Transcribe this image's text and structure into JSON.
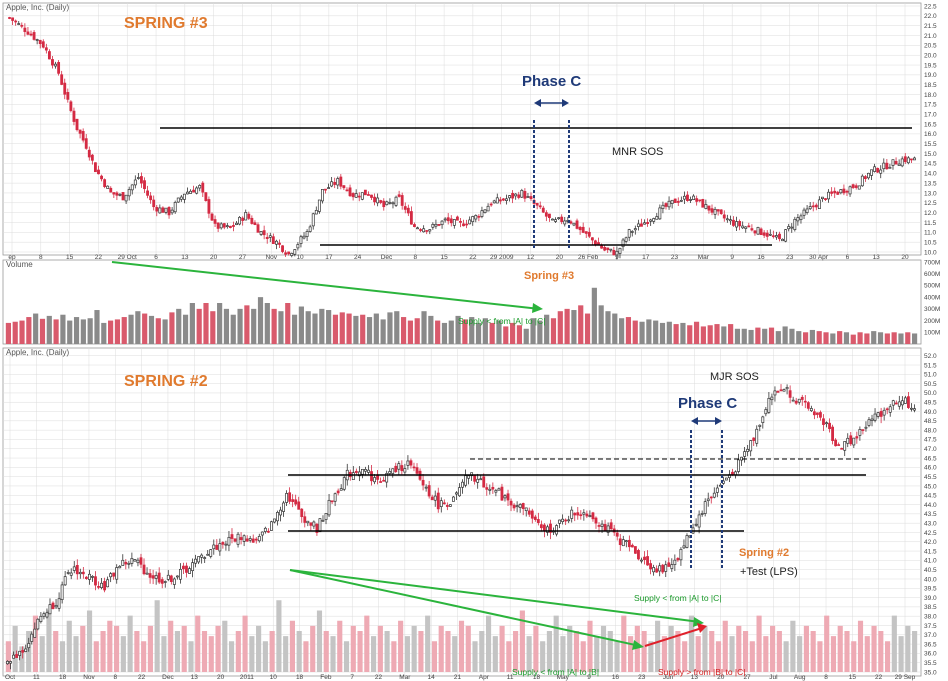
{
  "colors": {
    "up": "#333333",
    "down": "#d42a43",
    "vol_up": "#8a8a8a",
    "vol_down": "#d95a6c",
    "vol2_up": "#c4c4c4",
    "vol2_down": "#eeaab4",
    "level": "#000000",
    "phase": "#1f3a78",
    "trend_green": "#2bb43c",
    "trend_red": "#e0202a",
    "label_orange": "#e07a2e",
    "grid": "#dcdcdc"
  },
  "panel1": {
    "title": "Apple, Inc. (Daily)",
    "volume_title": "Volume",
    "annotations": {
      "spring": "SPRING #3",
      "phase": "Phase C",
      "sos": "MNR SOS",
      "spring_vol": "Spring #3",
      "supply": "Supply < from |A| to |C|"
    }
  },
  "panel2": {
    "title": "Apple, Inc. (Daily)",
    "annotations": {
      "spring": "SPRING #2",
      "phase": "Phase C",
      "sos": "MJR SOS",
      "spring_low": "Spring #2",
      "test": "+Test (LPS)",
      "supply_ac": "Supply < from |A| to |C|",
      "supply_ab": "Supply < from |A| to |B|",
      "supply_bc": "Supply > from |B| to |C|"
    }
  },
  "chart_data": [
    {
      "type": "candlestick",
      "title": "Apple, Inc. (Daily)",
      "x_ticks": [
        "ep",
        "8",
        "15",
        "22",
        "29 Oct",
        "6",
        "13",
        "20",
        "27",
        "Nov",
        "10",
        "17",
        "24",
        "Dec",
        "8",
        "15",
        "22",
        "29 2009",
        "12",
        "20",
        "26 Feb",
        "9",
        "17",
        "23",
        "Mar",
        "9",
        "16",
        "23",
        "30 Apr",
        "6",
        "13",
        "20"
      ],
      "y_ticks": [
        "22.5",
        "22.0",
        "21.5",
        "21.0",
        "20.5",
        "20.0",
        "19.5",
        "19.0",
        "18.5",
        "18.0",
        "17.5",
        "17.0",
        "16.5",
        "16.0",
        "15.5",
        "15.0",
        "14.5",
        "14.0",
        "13.5",
        "13.0",
        "12.5",
        "12.0",
        "11.5",
        "11.0",
        "10.5",
        "10.0"
      ],
      "ylim": [
        10.0,
        22.5
      ],
      "close_path": [
        [
          0,
          21.9
        ],
        [
          6,
          21.2
        ],
        [
          11,
          20.5
        ],
        [
          16,
          19.1
        ],
        [
          19,
          17.6
        ],
        [
          22,
          16.3
        ],
        [
          25,
          15.4
        ],
        [
          28,
          14.2
        ],
        [
          33,
          13.0
        ],
        [
          37,
          12.8
        ],
        [
          42,
          13.8
        ],
        [
          47,
          12.3
        ],
        [
          52,
          12.0
        ],
        [
          57,
          13.0
        ],
        [
          62,
          13.3
        ],
        [
          67,
          11.3
        ],
        [
          72,
          11.2
        ],
        [
          77,
          11.9
        ],
        [
          82,
          11.0
        ],
        [
          87,
          10.5
        ],
        [
          91,
          9.9
        ],
        [
          97,
          11.0
        ],
        [
          102,
          13.1
        ],
        [
          107,
          13.6
        ],
        [
          112,
          12.9
        ],
        [
          117,
          13.0
        ],
        [
          122,
          12.3
        ],
        [
          127,
          12.7
        ],
        [
          132,
          11.3
        ],
        [
          137,
          11.2
        ],
        [
          142,
          11.6
        ],
        [
          147,
          11.4
        ],
        [
          152,
          11.8
        ],
        [
          157,
          12.5
        ],
        [
          162,
          12.7
        ],
        [
          167,
          13.0
        ],
        [
          172,
          12.3
        ],
        [
          177,
          11.5
        ],
        [
          182,
          11.7
        ],
        [
          187,
          11.0
        ],
        [
          190,
          10.6
        ],
        [
          194,
          10.1
        ],
        [
          198,
          9.95
        ],
        [
          202,
          11.0
        ],
        [
          207,
          11.5
        ],
        [
          212,
          12.1
        ],
        [
          217,
          12.6
        ],
        [
          222,
          12.8
        ],
        [
          227,
          12.3
        ],
        [
          232,
          11.8
        ],
        [
          237,
          11.4
        ],
        [
          242,
          11.2
        ],
        [
          247,
          10.9
        ],
        [
          251,
          10.6
        ],
        [
          256,
          11.6
        ],
        [
          261,
          12.2
        ],
        [
          266,
          12.8
        ],
        [
          271,
          13.1
        ],
        [
          276,
          13.4
        ],
        [
          281,
          14.1
        ],
        [
          286,
          14.4
        ],
        [
          291,
          14.7
        ],
        [
          295,
          14.7
        ]
      ],
      "levels": {
        "resistance": 15.0,
        "support": 10.3
      },
      "phase_c_window": [
        "Jan 2009 week 2",
        "Jan 2009 week 4"
      ]
    },
    {
      "type": "bar",
      "title": "Volume",
      "y_ticks": [
        "700M",
        "600M",
        "500M",
        "400M",
        "300M",
        "200M",
        "100M"
      ],
      "ylim": [
        0,
        700
      ],
      "values_millions": [
        180,
        190,
        200,
        230,
        260,
        215,
        240,
        210,
        250,
        200,
        230,
        210,
        220,
        290,
        180,
        200,
        210,
        230,
        250,
        280,
        260,
        240,
        220,
        210,
        270,
        300,
        250,
        350,
        300,
        350,
        280,
        350,
        300,
        250,
        300,
        330,
        300,
        400,
        350,
        300,
        280,
        350,
        250,
        320,
        280,
        260,
        300,
        290,
        250,
        270,
        260,
        240,
        250,
        230,
        260,
        210,
        270,
        280,
        230,
        200,
        220,
        280,
        240,
        200,
        180,
        200,
        240,
        210,
        230,
        180,
        220,
        180,
        200,
        150,
        180,
        160,
        130,
        220,
        200,
        250,
        220,
        280,
        300,
        290,
        330,
        260,
        480,
        330,
        280,
        260,
        220,
        230,
        200,
        190,
        210,
        200,
        180,
        190,
        170,
        180,
        160,
        190,
        150,
        160,
        170,
        150,
        170,
        130,
        130,
        120,
        140,
        130,
        140,
        110,
        150,
        130,
        110,
        100,
        120,
        110,
        100,
        90,
        110,
        100,
        80,
        100,
        90,
        110,
        100,
        90,
        100,
        90,
        100,
        90
      ],
      "annotation_bar": "Spring #3"
    },
    {
      "type": "candlestick",
      "title": "Apple, Inc. (Daily)",
      "x_ticks": [
        "Oct",
        "11",
        "18",
        "Nov",
        "8",
        "22",
        "Dec",
        "13",
        "20",
        "2011",
        "10",
        "18",
        "Feb",
        "7",
        "22",
        "Mar",
        "14",
        "21",
        "Apr",
        "11",
        "18",
        "May",
        "9",
        "16",
        "23",
        "Jun",
        "13",
        "20",
        "27",
        "Jul",
        "Aug",
        "8",
        "15",
        "22",
        "29 Sep"
      ],
      "y_ticks": [
        "52.0",
        "51.5",
        "51.0",
        "50.5",
        "50.0",
        "49.5",
        "49.0",
        "48.5",
        "48.0",
        "47.5",
        "47.0",
        "46.5",
        "46.0",
        "45.5",
        "45.0",
        "44.5",
        "44.0",
        "43.5",
        "43.0",
        "42.5",
        "42.0",
        "41.5",
        "41.0",
        "40.5",
        "40.0",
        "39.5",
        "39.0",
        "38.5",
        "38.0",
        "37.5",
        "37.0",
        "36.5",
        "36.0",
        "35.5",
        "35.0"
      ],
      "ylim": [
        35.0,
        52.2
      ],
      "close_path": [
        [
          0,
          35.5
        ],
        [
          6,
          36.4
        ],
        [
          11,
          38.0
        ],
        [
          16,
          38.8
        ],
        [
          19,
          39.9
        ],
        [
          22,
          40.6
        ],
        [
          25,
          40.2
        ],
        [
          28,
          40.0
        ],
        [
          32,
          39.6
        ],
        [
          37,
          40.8
        ],
        [
          42,
          41.0
        ],
        [
          47,
          40.2
        ],
        [
          52,
          39.9
        ],
        [
          57,
          40.3
        ],
        [
          62,
          40.9
        ],
        [
          67,
          41.6
        ],
        [
          72,
          42.0
        ],
        [
          77,
          42.3
        ],
        [
          82,
          42.0
        ],
        [
          87,
          42.9
        ],
        [
          92,
          44.6
        ],
        [
          97,
          43.4
        ],
        [
          102,
          42.7
        ],
        [
          107,
          44.3
        ],
        [
          112,
          45.6
        ],
        [
          117,
          46.0
        ],
        [
          122,
          45.2
        ],
        [
          127,
          45.8
        ],
        [
          132,
          46.2
        ],
        [
          137,
          45.1
        ],
        [
          142,
          44.0
        ],
        [
          147,
          44.2
        ],
        [
          152,
          45.6
        ],
        [
          157,
          45.1
        ],
        [
          162,
          44.6
        ],
        [
          167,
          44.0
        ],
        [
          171,
          43.7
        ],
        [
          176,
          42.6
        ],
        [
          181,
          42.8
        ],
        [
          186,
          43.5
        ],
        [
          191,
          43.6
        ],
        [
          196,
          42.9
        ],
        [
          201,
          42.2
        ],
        [
          206,
          41.6
        ],
        [
          211,
          40.8
        ],
        [
          216,
          40.4
        ],
        [
          221,
          41.2
        ],
        [
          226,
          42.8
        ],
        [
          231,
          44.3
        ],
        [
          236,
          45.2
        ],
        [
          241,
          46.2
        ],
        [
          246,
          47.6
        ],
        [
          251,
          49.7
        ],
        [
          256,
          50.3
        ],
        [
          261,
          49.5
        ],
        [
          266,
          49.0
        ],
        [
          270,
          48.2
        ],
        [
          274,
          47.1
        ],
        [
          279,
          47.5
        ],
        [
          284,
          48.4
        ],
        [
          289,
          49.1
        ],
        [
          294,
          49.7
        ],
        [
          299,
          49.2
        ]
      ],
      "levels": {
        "resistance": 44.9,
        "support": 42.0,
        "upper_dashed": 45.8
      },
      "annotations": [
        "MJR SOS",
        "Spring #2",
        "+Test (LPS)"
      ]
    },
    {
      "type": "bar",
      "title": "Volume",
      "values_relative": [
        30,
        45,
        25,
        40,
        55,
        35,
        60,
        40,
        30,
        50,
        35,
        45,
        60,
        30,
        40,
        50,
        45,
        35,
        55,
        40,
        30,
        45,
        70,
        35,
        50,
        40,
        45,
        30,
        55,
        40,
        35,
        45,
        50,
        30,
        40,
        55,
        35,
        45,
        30,
        40,
        70,
        35,
        50,
        40,
        30,
        45,
        60,
        40,
        35,
        50,
        30,
        45,
        40,
        55,
        35,
        45,
        40,
        30,
        50,
        35,
        45,
        40,
        55,
        30,
        45,
        40,
        35,
        50,
        45,
        30,
        40,
        55,
        35,
        45,
        30,
        40,
        60,
        35,
        45,
        30,
        40,
        55,
        35,
        45,
        40,
        30,
        50,
        35,
        45,
        40,
        30,
        55,
        35,
        45,
        40,
        30,
        50,
        35,
        45,
        40,
        30,
        55,
        35,
        45,
        40,
        30,
        50,
        35,
        45,
        40,
        30,
        55,
        35,
        45,
        40,
        30,
        50,
        35,
        45,
        40,
        30,
        55,
        35,
        45,
        40,
        30,
        50,
        35,
        45,
        40,
        30,
        55,
        35,
        45,
        40
      ]
    }
  ]
}
